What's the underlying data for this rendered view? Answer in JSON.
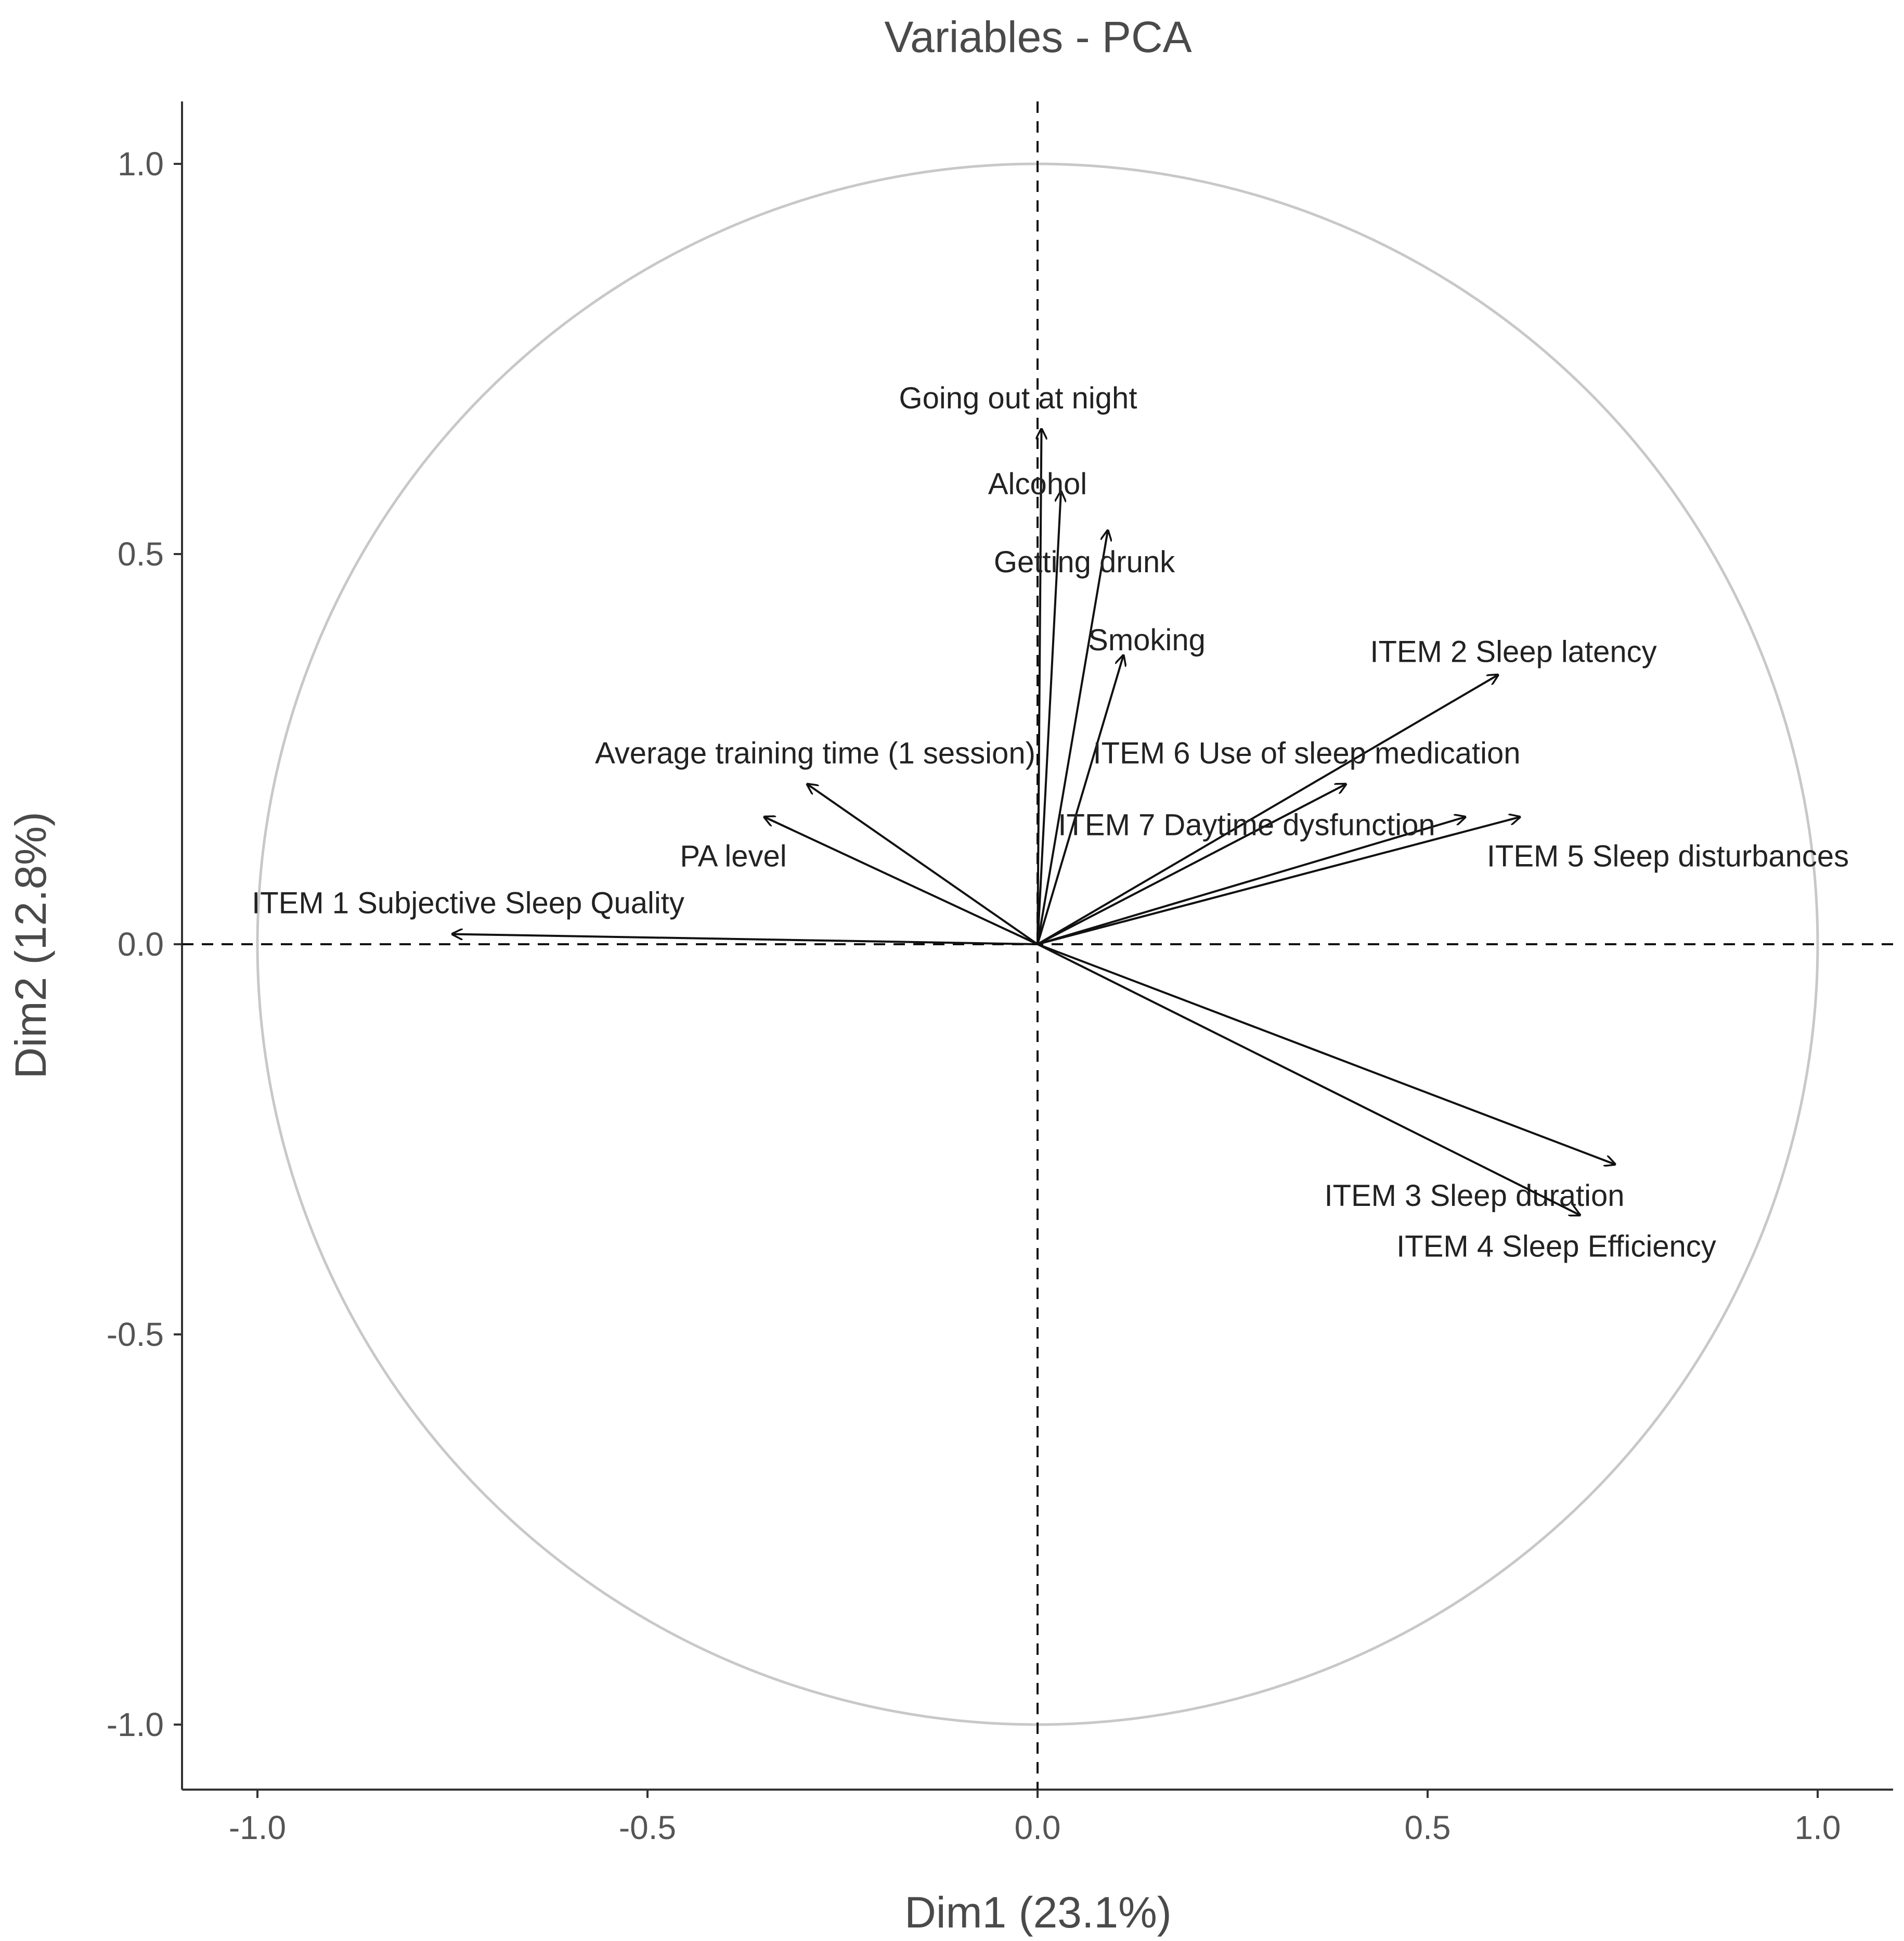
{
  "chart_data": {
    "type": "scatter",
    "subtype": "pca-variable-correlation-circle",
    "title": "Variables - PCA",
    "xlabel": "Dim1 (23.1%)",
    "ylabel": "Dim2 (12.8%)",
    "xlim": [
      -1.1,
      1.1
    ],
    "ylim": [
      -1.1,
      1.1
    ],
    "x_ticks": [
      -1.0,
      -0.5,
      0.0,
      0.5,
      1.0
    ],
    "y_ticks": [
      -1.0,
      -0.5,
      0.0,
      0.5,
      1.0
    ],
    "x_tick_labels": [
      "-1.0",
      "-0.5",
      "0.0",
      "0.5",
      "1.0"
    ],
    "y_tick_labels": [
      "-1.0",
      "-0.5",
      "0.0",
      "0.5",
      "1.0"
    ],
    "unit_circle_radius": 1.0,
    "reference_lines": {
      "x": 0,
      "y": 0,
      "style": "dashed"
    },
    "colors": {
      "arrow": "#111111",
      "circle": "#c8c8c8",
      "axis": "#333333",
      "text": "#222222"
    },
    "variables": [
      {
        "name": "Going out at night",
        "x": 0.005,
        "y": 0.66,
        "label_anchor": "middle",
        "label_dx": -0.03,
        "label_dy": 0.04
      },
      {
        "name": "Alcohol",
        "x": 0.03,
        "y": 0.58,
        "label_anchor": "middle",
        "label_dx": -0.03,
        "label_dy": 0.01
      },
      {
        "name": "Getting drunk",
        "x": 0.09,
        "y": 0.53,
        "label_anchor": "middle",
        "label_dx": -0.03,
        "label_dy": -0.04
      },
      {
        "name": "Smoking",
        "x": 0.11,
        "y": 0.37,
        "label_anchor": "middle",
        "label_dx": 0.03,
        "label_dy": 0.02
      },
      {
        "name": "ITEM 2 Sleep latency",
        "x": 0.59,
        "y": 0.345,
        "label_anchor": "middle",
        "label_dx": 0.02,
        "label_dy": 0.03
      },
      {
        "name": "ITEM 6 Use of sleep medication",
        "x": 0.395,
        "y": 0.205,
        "label_anchor": "middle",
        "label_dx": -0.05,
        "label_dy": 0.04
      },
      {
        "name": "ITEM 7 Daytime dysfunction",
        "x": 0.548,
        "y": 0.163,
        "label_anchor": "middle",
        "label_dx": -0.28,
        "label_dy": -0.01
      },
      {
        "name": "ITEM 5 Sleep disturbances",
        "x": 0.618,
        "y": 0.163,
        "label_anchor": "middle",
        "label_dx": 0.19,
        "label_dy": -0.05
      },
      {
        "name": "Average training time (1 session)",
        "x": -0.295,
        "y": 0.205,
        "label_anchor": "middle",
        "label_dx": 0.01,
        "label_dy": 0.04
      },
      {
        "name": "PA level",
        "x": -0.35,
        "y": 0.163,
        "label_anchor": "middle",
        "label_dx": -0.04,
        "label_dy": -0.05
      },
      {
        "name": "ITEM 1 Subjective Sleep Quality",
        "x": -0.75,
        "y": 0.013,
        "label_anchor": "middle",
        "label_dx": 0.02,
        "label_dy": 0.04
      },
      {
        "name": "ITEM 3 Sleep duration",
        "x": 0.74,
        "y": -0.282,
        "label_anchor": "middle",
        "label_dx": -0.18,
        "label_dy": -0.04
      },
      {
        "name": "ITEM 4 Sleep Efficiency",
        "x": 0.695,
        "y": -0.347,
        "label_anchor": "middle",
        "label_dx": -0.03,
        "label_dy": -0.04
      }
    ]
  }
}
